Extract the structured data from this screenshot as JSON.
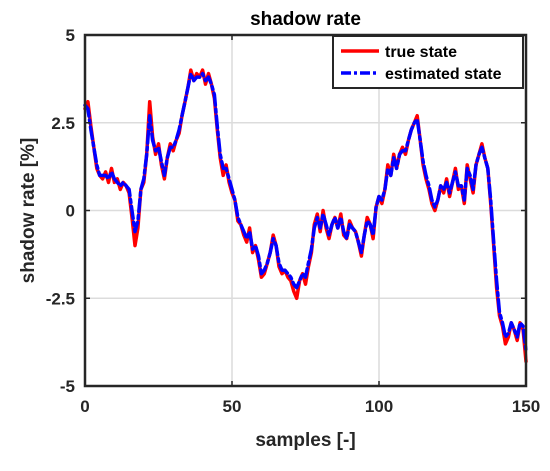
{
  "chart_data": {
    "type": "line",
    "title": "shadow rate",
    "xlabel": "samples [-]",
    "ylabel": "shadow rate [%]",
    "xlim": [
      0,
      150
    ],
    "ylim": [
      -5,
      5
    ],
    "xticks": [
      0,
      50,
      100,
      150
    ],
    "xtick_labels": [
      "0",
      "50",
      "100",
      "150"
    ],
    "yticks": [
      -5,
      -2.5,
      0,
      2.5,
      5
    ],
    "ytick_labels": [
      "-5",
      "-2.5",
      "0",
      "2.5",
      "5"
    ],
    "grid": true,
    "legend_position": "top-right",
    "series": [
      {
        "name": "true state",
        "color": "#ff0000",
        "style": "solid",
        "x": [
          0,
          1,
          2,
          3,
          4,
          5,
          6,
          7,
          8,
          9,
          10,
          11,
          12,
          13,
          14,
          15,
          16,
          17,
          18,
          19,
          20,
          21,
          22,
          23,
          24,
          25,
          26,
          27,
          28,
          29,
          30,
          31,
          32,
          33,
          34,
          35,
          36,
          37,
          38,
          39,
          40,
          41,
          42,
          43,
          44,
          45,
          46,
          47,
          48,
          49,
          50,
          51,
          52,
          53,
          54,
          55,
          56,
          57,
          58,
          59,
          60,
          61,
          62,
          63,
          64,
          65,
          66,
          67,
          68,
          69,
          70,
          71,
          72,
          73,
          74,
          75,
          76,
          77,
          78,
          79,
          80,
          81,
          82,
          83,
          84,
          85,
          86,
          87,
          88,
          89,
          90,
          91,
          92,
          93,
          94,
          95,
          96,
          97,
          98,
          99,
          100,
          101,
          102,
          103,
          104,
          105,
          106,
          107,
          108,
          109,
          110,
          111,
          112,
          113,
          114,
          115,
          116,
          117,
          118,
          119,
          120,
          121,
          122,
          123,
          124,
          125,
          126,
          127,
          128,
          129,
          130,
          131,
          132,
          133,
          134,
          135,
          136,
          137,
          138,
          139,
          140,
          141,
          142,
          143,
          144,
          145,
          146,
          147,
          148,
          149,
          150
        ],
        "y": [
          2.9,
          3.1,
          2.4,
          1.8,
          1.2,
          1.0,
          0.9,
          1.1,
          0.8,
          1.2,
          0.8,
          0.9,
          0.6,
          0.8,
          0.7,
          0.5,
          -0.2,
          -1.0,
          -0.5,
          0.6,
          0.8,
          1.6,
          3.1,
          2.1,
          1.6,
          1.9,
          1.3,
          0.9,
          1.5,
          1.9,
          1.7,
          2.0,
          2.2,
          2.7,
          3.1,
          3.5,
          4.0,
          3.7,
          3.9,
          3.8,
          4.0,
          3.6,
          3.9,
          3.6,
          3.2,
          2.3,
          1.5,
          1.0,
          1.3,
          0.8,
          0.5,
          0.3,
          -0.3,
          -0.4,
          -0.7,
          -0.9,
          -0.5,
          -1.2,
          -1.0,
          -1.4,
          -1.9,
          -1.8,
          -1.5,
          -1.2,
          -0.7,
          -1.0,
          -1.6,
          -1.8,
          -1.7,
          -1.9,
          -2.0,
          -2.3,
          -2.5,
          -2.0,
          -1.8,
          -2.1,
          -1.6,
          -1.2,
          -0.4,
          -0.1,
          -0.6,
          0.0,
          -0.5,
          -0.8,
          -0.4,
          -0.2,
          -0.5,
          -0.1,
          -0.7,
          -0.8,
          -0.3,
          -0.5,
          -0.6,
          -0.9,
          -1.3,
          -0.7,
          -0.2,
          -0.4,
          -0.8,
          0.1,
          0.4,
          0.2,
          0.6,
          1.3,
          1.0,
          1.6,
          1.2,
          1.6,
          1.8,
          1.6,
          2.0,
          2.3,
          2.5,
          2.7,
          2.0,
          1.3,
          0.9,
          0.6,
          0.2,
          0.0,
          0.3,
          0.7,
          0.5,
          0.9,
          0.4,
          0.8,
          1.2,
          0.6,
          0.7,
          0.2,
          1.3,
          0.9,
          0.5,
          1.3,
          1.6,
          1.9,
          1.5,
          1.2,
          0.2,
          -1.0,
          -2.2,
          -3.0,
          -3.3,
          -3.8,
          -3.6,
          -3.2,
          -3.4,
          -3.7,
          -3.2,
          -3.4,
          -4.3
        ]
      },
      {
        "name": "estimated state",
        "color": "#0000ff",
        "style": "dash-dot",
        "x": [
          0,
          1,
          2,
          3,
          4,
          5,
          6,
          7,
          8,
          9,
          10,
          11,
          12,
          13,
          14,
          15,
          16,
          17,
          18,
          19,
          20,
          21,
          22,
          23,
          24,
          25,
          26,
          27,
          28,
          29,
          30,
          31,
          32,
          33,
          34,
          35,
          36,
          37,
          38,
          39,
          40,
          41,
          42,
          43,
          44,
          45,
          46,
          47,
          48,
          49,
          50,
          51,
          52,
          53,
          54,
          55,
          56,
          57,
          58,
          59,
          60,
          61,
          62,
          63,
          64,
          65,
          66,
          67,
          68,
          69,
          70,
          71,
          72,
          73,
          74,
          75,
          76,
          77,
          78,
          79,
          80,
          81,
          82,
          83,
          84,
          85,
          86,
          87,
          88,
          89,
          90,
          91,
          92,
          93,
          94,
          95,
          96,
          97,
          98,
          99,
          100,
          101,
          102,
          103,
          104,
          105,
          106,
          107,
          108,
          109,
          110,
          111,
          112,
          113,
          114,
          115,
          116,
          117,
          118,
          119,
          120,
          121,
          122,
          123,
          124,
          125,
          126,
          127,
          128,
          129,
          130,
          131,
          132,
          133,
          134,
          135,
          136,
          137,
          138,
          139,
          140,
          141,
          142,
          143,
          144,
          145,
          146,
          147,
          148,
          149,
          150
        ],
        "y": [
          3.0,
          2.9,
          2.3,
          1.8,
          1.3,
          1.0,
          1.0,
          1.0,
          0.9,
          1.1,
          0.9,
          0.8,
          0.7,
          0.8,
          0.7,
          0.6,
          0.0,
          -0.6,
          -0.3,
          0.6,
          0.9,
          1.6,
          2.7,
          2.0,
          1.7,
          1.8,
          1.4,
          1.0,
          1.5,
          1.8,
          1.8,
          2.0,
          2.3,
          2.7,
          3.1,
          3.5,
          3.9,
          3.7,
          3.8,
          3.8,
          3.9,
          3.7,
          3.8,
          3.6,
          3.3,
          2.4,
          1.6,
          1.2,
          1.2,
          0.9,
          0.6,
          0.3,
          -0.2,
          -0.4,
          -0.6,
          -0.8,
          -0.6,
          -1.1,
          -1.0,
          -1.3,
          -1.8,
          -1.7,
          -1.5,
          -1.2,
          -0.8,
          -1.0,
          -1.5,
          -1.7,
          -1.7,
          -1.8,
          -1.9,
          -2.1,
          -2.2,
          -2.0,
          -1.8,
          -1.9,
          -1.5,
          -1.1,
          -0.5,
          -0.2,
          -0.5,
          -0.1,
          -0.4,
          -0.7,
          -0.4,
          -0.2,
          -0.5,
          -0.2,
          -0.6,
          -0.8,
          -0.4,
          -0.5,
          -0.6,
          -0.9,
          -1.2,
          -0.7,
          -0.3,
          -0.4,
          -0.7,
          0.1,
          0.4,
          0.3,
          0.6,
          1.2,
          1.0,
          1.5,
          1.2,
          1.6,
          1.7,
          1.7,
          2.0,
          2.3,
          2.5,
          2.6,
          2.0,
          1.4,
          1.0,
          0.7,
          0.3,
          0.1,
          0.3,
          0.7,
          0.6,
          0.8,
          0.5,
          0.8,
          1.1,
          0.7,
          0.7,
          0.3,
          1.2,
          1.0,
          0.6,
          1.3,
          1.6,
          1.8,
          1.5,
          1.2,
          0.3,
          -0.9,
          -2.0,
          -2.9,
          -3.2,
          -3.6,
          -3.5,
          -3.2,
          -3.4,
          -3.6,
          -3.2,
          -3.3,
          -4.0
        ]
      }
    ]
  }
}
